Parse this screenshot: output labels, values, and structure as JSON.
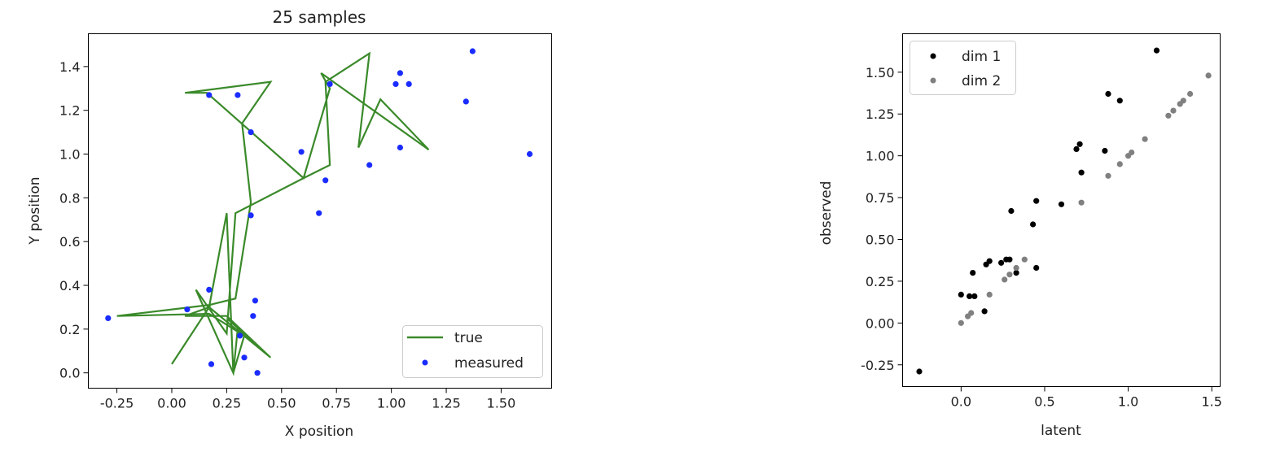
{
  "chart_data": [
    {
      "type": "line+scatter",
      "title": "25 samples",
      "xlabel": "X position",
      "ylabel": "Y position",
      "xlim": [
        -0.38,
        1.73
      ],
      "ylim": [
        -0.07,
        1.55
      ],
      "xticks": [
        "-0.25",
        "0.00",
        "0.25",
        "0.50",
        "0.75",
        "1.00",
        "1.25",
        "1.50"
      ],
      "xtick_values": [
        -0.25,
        0.0,
        0.25,
        0.5,
        0.75,
        1.0,
        1.25,
        1.5
      ],
      "yticks": [
        "0.0",
        "0.2",
        "0.4",
        "0.6",
        "0.8",
        "1.0",
        "1.2",
        "1.4"
      ],
      "ytick_values": [
        0.0,
        0.2,
        0.4,
        0.6,
        0.8,
        1.0,
        1.2,
        1.4
      ],
      "grid": false,
      "legend_position": "lower-right",
      "series": [
        {
          "name": "true",
          "kind": "line",
          "color": "#3a8a2a",
          "x": [
            0.0,
            0.17,
            0.06,
            0.25,
            0.45,
            0.3,
            0.28,
            0.11,
            0.25,
            0.29,
            0.6,
            0.72,
            0.7,
            0.9,
            0.85,
            0.95,
            1.17,
            0.68,
            0.72,
            0.6,
            0.16,
            0.06,
            0.45,
            0.32,
            0.36,
            0.29,
            0.17,
            -0.25,
            0.17,
            0.33,
            0.28,
            0.25,
            0.17,
            0.45,
            0.25
          ],
          "y": [
            0.04,
            0.3,
            0.26,
            0.26,
            0.07,
            0.2,
            0.0,
            0.38,
            0.18,
            0.73,
            0.89,
            0.95,
            1.33,
            1.46,
            1.03,
            1.25,
            1.02,
            1.37,
            1.3,
            0.89,
            1.28,
            1.28,
            1.33,
            1.14,
            0.78,
            0.34,
            0.31,
            0.26,
            0.27,
            0.17,
            0.0,
            0.73,
            0.3,
            0.07,
            0.25
          ]
        },
        {
          "name": "measured",
          "kind": "scatter",
          "color": "#1a2cff",
          "x": [
            -0.29,
            0.17,
            0.3,
            0.36,
            0.59,
            0.72,
            1.04,
            1.02,
            1.08,
            1.37,
            1.34,
            1.63,
            0.9,
            1.04,
            0.7,
            0.67,
            0.36,
            0.17,
            0.07,
            0.38,
            0.37,
            0.31,
            0.33,
            0.18,
            0.39
          ],
          "y": [
            0.25,
            1.27,
            1.27,
            1.1,
            1.01,
            1.32,
            1.37,
            1.32,
            1.32,
            1.47,
            1.24,
            1.0,
            0.95,
            1.03,
            0.88,
            0.73,
            0.72,
            0.38,
            0.29,
            0.33,
            0.26,
            0.17,
            0.07,
            0.04,
            0.0
          ]
        }
      ]
    },
    {
      "type": "scatter",
      "title": "",
      "xlabel": "latent",
      "ylabel": "observed",
      "xlim": [
        -0.35,
        1.55
      ],
      "ylim": [
        -0.38,
        1.73
      ],
      "xticks": [
        "0.0",
        "0.5",
        "1.0",
        "1.5"
      ],
      "xtick_values": [
        0.0,
        0.5,
        1.0,
        1.5
      ],
      "yticks": [
        "-0.25",
        "0.00",
        "0.25",
        "0.50",
        "0.75",
        "1.00",
        "1.25",
        "1.50"
      ],
      "ytick_values": [
        -0.25,
        0.0,
        0.25,
        0.5,
        0.75,
        1.0,
        1.25,
        1.5
      ],
      "grid": false,
      "legend_position": "upper-left",
      "series": [
        {
          "name": "dim 1",
          "color": "#000000",
          "x": [
            -0.25,
            0.0,
            0.05,
            0.08,
            0.07,
            0.14,
            0.15,
            0.17,
            0.24,
            0.27,
            0.29,
            0.33,
            0.3,
            0.43,
            0.45,
            0.45,
            0.6,
            0.69,
            0.71,
            0.72,
            0.86,
            0.88,
            0.95,
            1.17
          ],
          "y": [
            -0.29,
            0.17,
            0.16,
            0.16,
            0.3,
            0.07,
            0.35,
            0.37,
            0.36,
            0.38,
            0.38,
            0.3,
            0.67,
            0.59,
            0.73,
            0.33,
            0.71,
            1.04,
            1.07,
            0.9,
            1.03,
            1.37,
            1.33,
            1.63
          ]
        },
        {
          "name": "dim 2",
          "color": "#808080",
          "x": [
            0.0,
            0.04,
            0.06,
            0.17,
            0.26,
            0.29,
            0.33,
            0.38,
            0.72,
            0.88,
            0.95,
            1.0,
            1.02,
            1.1,
            1.24,
            1.27,
            1.31,
            1.33,
            1.37,
            1.48
          ],
          "y": [
            0.0,
            0.04,
            0.06,
            0.17,
            0.26,
            0.29,
            0.33,
            0.38,
            0.72,
            0.88,
            0.95,
            1.0,
            1.02,
            1.1,
            1.24,
            1.27,
            1.31,
            1.33,
            1.37,
            1.48
          ]
        }
      ]
    }
  ]
}
